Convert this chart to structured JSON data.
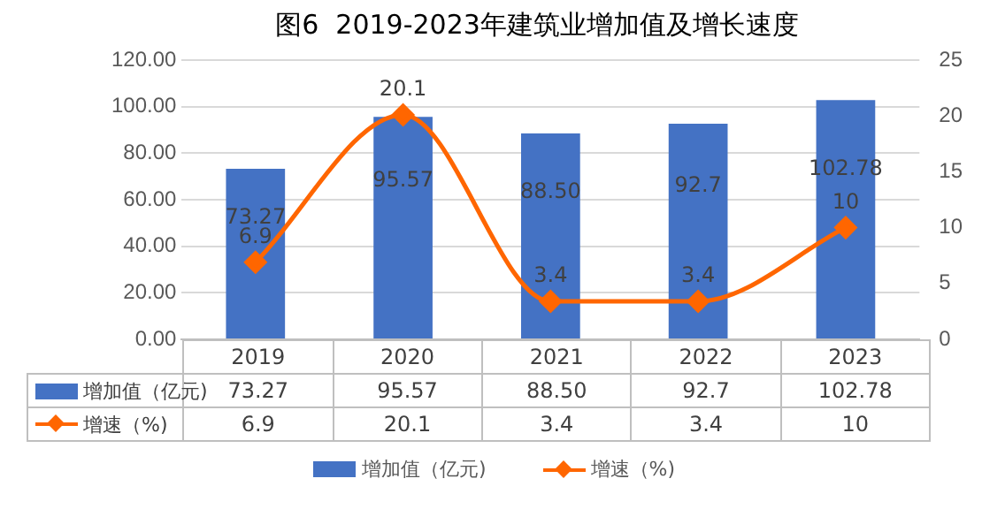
{
  "chart_data": {
    "type": "bar",
    "title": "图6  2019-2023年建筑业增加值及增长速度",
    "categories": [
      "2019",
      "2020",
      "2021",
      "2022",
      "2023"
    ],
    "series": [
      {
        "name": "增加值（亿元)",
        "color": "#4472c4",
        "values": [
          73.27,
          95.57,
          88.5,
          92.7,
          102.78
        ],
        "value_labels": [
          "73.27",
          "95.57",
          "88.50",
          "92.7",
          "102.78"
        ]
      },
      {
        "name": "增速（%)",
        "type": "line",
        "axis": "y2",
        "color": "#ff6600",
        "marker": "diamond",
        "values": [
          6.9,
          20.1,
          3.4,
          3.4,
          10
        ],
        "value_labels": [
          "6.9",
          "20.1",
          "3.4",
          "3.4",
          "10"
        ]
      }
    ],
    "ylim": [
      0,
      120
    ],
    "yticks": [
      {
        "value": 0,
        "label": "0.00"
      },
      {
        "value": 20,
        "label": "20.00"
      },
      {
        "value": 40,
        "label": "40.00"
      },
      {
        "value": 60,
        "label": "60.00"
      },
      {
        "value": 80,
        "label": "80.00"
      },
      {
        "value": 100,
        "label": "100.00"
      },
      {
        "value": 120,
        "label": "120.00"
      }
    ],
    "y2lim": [
      0,
      25
    ],
    "y2ticks": [
      0,
      5,
      10,
      15,
      20,
      25
    ],
    "grid": "y",
    "legend": "bottom"
  }
}
